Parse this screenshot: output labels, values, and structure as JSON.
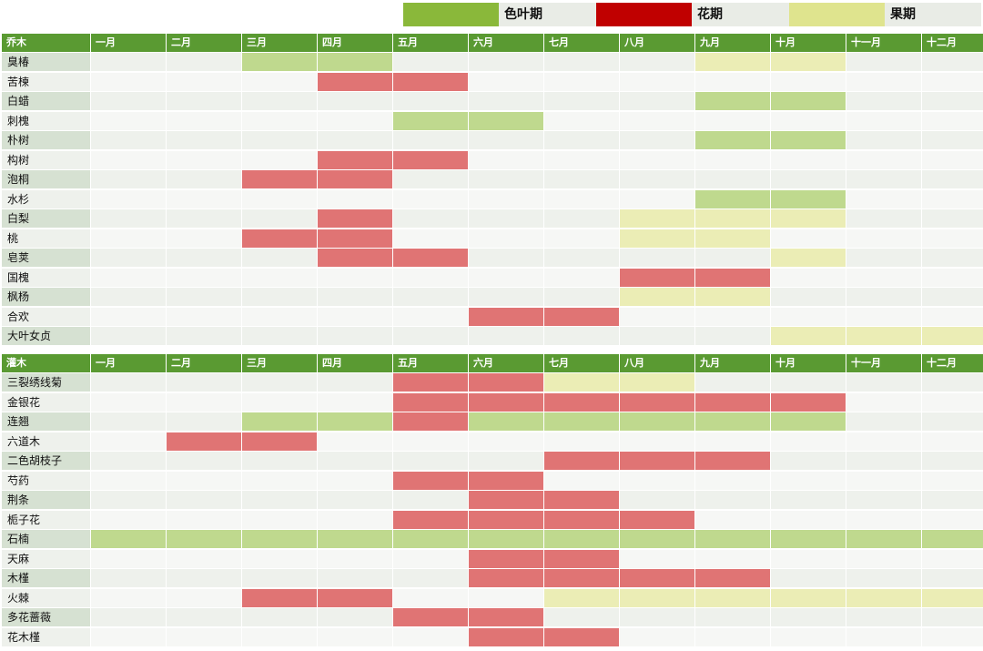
{
  "legend": [
    {
      "label": "色叶期",
      "color": "#8ab83a"
    },
    {
      "label": "花期",
      "color": "#c00000"
    },
    {
      "label": "果期",
      "color": "#dfe48e"
    }
  ],
  "months": [
    "一月",
    "二月",
    "三月",
    "四月",
    "五月",
    "六月",
    "七月",
    "八月",
    "九月",
    "十月",
    "十一月",
    "十二月"
  ],
  "colors": {
    "leaf": "#bfd98e",
    "flower": "#e07474",
    "fruit": "#ebedb5",
    "row_even": "#eef1ec",
    "row_odd": "#f6f7f5",
    "name_even": "#d6e1d2",
    "name_odd": "#eef1ec",
    "header": "#5a9a32"
  },
  "chart_data": [
    {
      "type": "table",
      "title": "乔木",
      "rows": [
        {
          "name": "臭椿",
          "leaf": [
            3,
            4
          ],
          "fruit": [
            9,
            10
          ]
        },
        {
          "name": "苦楝",
          "flower": [
            4,
            5
          ]
        },
        {
          "name": "白蜡",
          "leaf": [
            9,
            10
          ]
        },
        {
          "name": "刺槐",
          "leaf": [
            5,
            6
          ]
        },
        {
          "name": "朴树",
          "leaf": [
            9,
            10
          ]
        },
        {
          "name": "构树",
          "flower": [
            4,
            5
          ]
        },
        {
          "name": "泡桐",
          "flower": [
            3,
            4
          ]
        },
        {
          "name": "水杉",
          "leaf": [
            9,
            10
          ]
        },
        {
          "name": "白梨",
          "flower": [
            4
          ],
          "fruit": [
            8,
            10
          ]
        },
        {
          "name": "桃",
          "flower": [
            3,
            4
          ],
          "fruit": [
            8,
            9
          ]
        },
        {
          "name": "皂荚",
          "flower": [
            4,
            5
          ],
          "fruit": [
            10
          ]
        },
        {
          "name": "国槐",
          "flower": [
            8,
            9
          ]
        },
        {
          "name": "枫杨",
          "fruit": [
            8,
            9
          ]
        },
        {
          "name": "合欢",
          "flower": [
            6,
            7
          ]
        },
        {
          "name": "大叶女贞",
          "fruit": [
            10,
            12
          ]
        }
      ]
    },
    {
      "type": "table",
      "title": "灌木",
      "rows": [
        {
          "name": "三裂绣线菊",
          "flower": [
            5,
            6
          ],
          "fruit": [
            7,
            8
          ]
        },
        {
          "name": "金银花",
          "flower": [
            5,
            10
          ]
        },
        {
          "name": "连翘",
          "leaf": [
            3,
            4
          ],
          "flower": [
            5
          ],
          "leaf2": [
            6,
            10
          ]
        },
        {
          "name": "六道木",
          "flower": [
            2,
            3
          ]
        },
        {
          "name": "二色胡枝子",
          "flower": [
            7,
            9
          ]
        },
        {
          "name": "芍药",
          "flower": [
            5,
            6
          ]
        },
        {
          "name": "荆条",
          "flower": [
            6,
            7
          ]
        },
        {
          "name": "栀子花",
          "flower": [
            5,
            8
          ]
        },
        {
          "name": "石楠",
          "leaf": [
            1,
            12
          ]
        },
        {
          "name": "天麻",
          "flower": [
            6,
            7
          ]
        },
        {
          "name": "木槿",
          "flower": [
            6,
            9
          ]
        },
        {
          "name": "火棘",
          "flower": [
            3,
            4
          ],
          "fruit": [
            7,
            12
          ]
        },
        {
          "name": "多花蔷薇",
          "flower": [
            5,
            6
          ]
        },
        {
          "name": "花木槿",
          "flower": [
            6,
            7
          ]
        }
      ]
    }
  ]
}
